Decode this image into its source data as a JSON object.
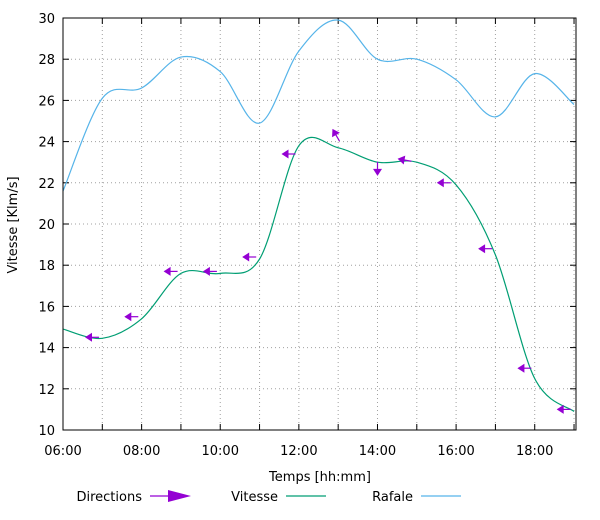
{
  "chart_data": {
    "type": "line",
    "title": "",
    "xlabel": "Temps [hh:mm]",
    "ylabel": "Vitesse [Klm/s]",
    "xlim": [
      6,
      19.05
    ],
    "ylim": [
      10,
      30
    ],
    "x_ticks": [
      6,
      8,
      10,
      12,
      14,
      16,
      18
    ],
    "x_tick_labels": [
      "06:00",
      "08:00",
      "10:00",
      "12:00",
      "14:00",
      "16:00",
      "18:00"
    ],
    "y_ticks": [
      10,
      12,
      14,
      16,
      18,
      20,
      22,
      24,
      26,
      28,
      30
    ],
    "grid": true,
    "legend_position": "bottom",
    "series": [
      {
        "name": "Vitesse",
        "color": "#009e73",
        "x": [
          6.0,
          7.0,
          8.0,
          9.0,
          10.0,
          11.0,
          12.0,
          13.0,
          14.0,
          15.0,
          16.0,
          17.0,
          18.0,
          19.0
        ],
        "values": [
          14.9,
          14.45,
          15.4,
          17.6,
          17.6,
          18.3,
          23.8,
          23.7,
          23.0,
          23.0,
          21.9,
          18.5,
          12.5,
          10.9
        ]
      },
      {
        "name": "Rafale",
        "color": "#56b4e9",
        "x": [
          6.0,
          7.0,
          8.0,
          9.0,
          10.0,
          11.0,
          12.0,
          13.0,
          14.0,
          15.0,
          16.0,
          17.0,
          18.0,
          19.0
        ],
        "values": [
          21.6,
          26.1,
          26.6,
          28.1,
          27.4,
          24.9,
          28.4,
          29.9,
          28.0,
          28.0,
          27.0,
          25.2,
          27.3,
          25.8
        ]
      },
      {
        "name": "Directions",
        "color": "#9400d3",
        "type": "vectors",
        "x": [
          6.75,
          7.75,
          8.75,
          9.75,
          10.75,
          11.75,
          12.95,
          14.0,
          14.7,
          15.7,
          16.75,
          17.75,
          18.75
        ],
        "values": [
          14.5,
          15.5,
          17.7,
          17.7,
          18.4,
          23.4,
          24.3,
          22.7,
          23.1,
          22.0,
          18.8,
          13.0,
          11.0
        ],
        "directions_deg": [
          180,
          180,
          180,
          180,
          180,
          180,
          120,
          270,
          170,
          180,
          180,
          180,
          180
        ]
      }
    ]
  },
  "legend": {
    "directions": "Directions",
    "vitesse": "Vitesse",
    "rafale": "Rafale"
  }
}
